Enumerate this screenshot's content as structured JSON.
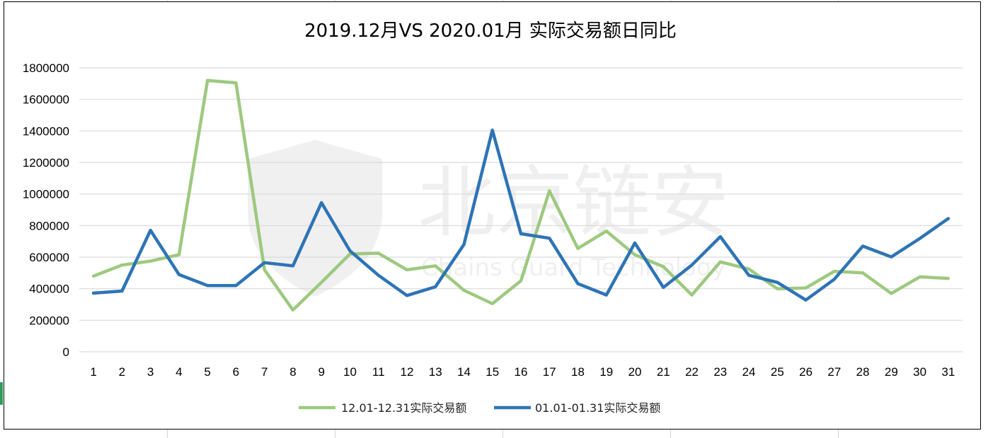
{
  "chart_data": {
    "type": "line",
    "title": "2019.12月VS 2020.01月 实际交易额日同比",
    "categories": [
      "1",
      "2",
      "3",
      "4",
      "5",
      "6",
      "7",
      "8",
      "9",
      "10",
      "11",
      "12",
      "13",
      "14",
      "15",
      "16",
      "17",
      "18",
      "19",
      "20",
      "21",
      "22",
      "23",
      "24",
      "25",
      "26",
      "27",
      "28",
      "29",
      "30",
      "31"
    ],
    "ylim": [
      0,
      1800000
    ],
    "yticks": [
      "0",
      "200000",
      "400000",
      "600000",
      "800000",
      "1000000",
      "1200000",
      "1400000",
      "1600000",
      "1800000"
    ],
    "grid": true,
    "legend": "bottom",
    "series": [
      {
        "name": "12.01-12.31实际交易额",
        "color": "#9dc97f",
        "values": [
          480000,
          550000,
          575000,
          615000,
          1720000,
          1705000,
          520000,
          265000,
          440000,
          620000,
          625000,
          520000,
          545000,
          390000,
          305000,
          450000,
          1020000,
          655000,
          765000,
          615000,
          540000,
          360000,
          570000,
          525000,
          400000,
          405000,
          510000,
          500000,
          370000,
          475000,
          465000
        ]
      },
      {
        "name": "01.01-01.31实际交易额",
        "color": "#2e74b5",
        "values": [
          372000,
          385000,
          770000,
          490000,
          420000,
          420000,
          565000,
          545000,
          945000,
          640000,
          485000,
          357000,
          412000,
          680000,
          1405000,
          748000,
          720000,
          432000,
          360000,
          690000,
          408000,
          550000,
          730000,
          485000,
          440000,
          328000,
          460000,
          670000,
          602000,
          718000,
          845000
        ]
      }
    ]
  },
  "watermark": {
    "cn": "北京链安",
    "en": "Chains Guard Technology"
  }
}
